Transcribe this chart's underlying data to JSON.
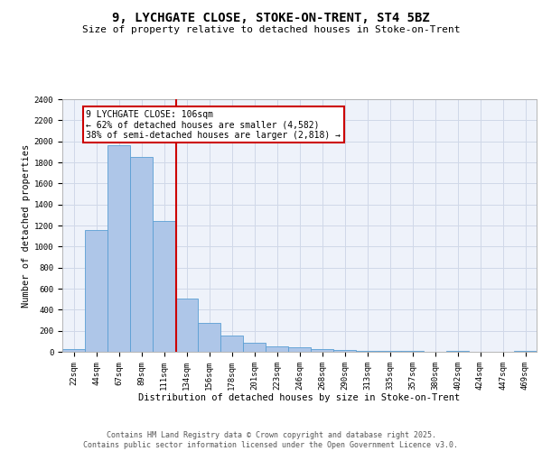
{
  "title1": "9, LYCHGATE CLOSE, STOKE-ON-TRENT, ST4 5BZ",
  "title2": "Size of property relative to detached houses in Stoke-on-Trent",
  "xlabel": "Distribution of detached houses by size in Stoke-on-Trent",
  "ylabel": "Number of detached properties",
  "categories": [
    "22sqm",
    "44sqm",
    "67sqm",
    "89sqm",
    "111sqm",
    "134sqm",
    "156sqm",
    "178sqm",
    "201sqm",
    "223sqm",
    "246sqm",
    "268sqm",
    "290sqm",
    "313sqm",
    "335sqm",
    "357sqm",
    "380sqm",
    "402sqm",
    "424sqm",
    "447sqm",
    "469sqm"
  ],
  "values": [
    25,
    1160,
    1960,
    1850,
    1240,
    510,
    275,
    155,
    90,
    50,
    40,
    25,
    15,
    10,
    5,
    5,
    2,
    5,
    2,
    2,
    10
  ],
  "bar_color": "#aec6e8",
  "bar_edge_color": "#5a9fd4",
  "bar_width": 1.0,
  "red_line_x": 4.55,
  "annotation_text": "9 LYCHGATE CLOSE: 106sqm\n← 62% of detached houses are smaller (4,582)\n38% of semi-detached houses are larger (2,818) →",
  "annotation_box_color": "#ffffff",
  "annotation_box_edge_color": "#cc0000",
  "red_line_color": "#cc0000",
  "grid_color": "#d0d8e8",
  "background_color": "#eef2fa",
  "footer_text": "Contains HM Land Registry data © Crown copyright and database right 2025.\nContains public sector information licensed under the Open Government Licence v3.0.",
  "ylim": [
    0,
    2400
  ],
  "yticks": [
    0,
    200,
    400,
    600,
    800,
    1000,
    1200,
    1400,
    1600,
    1800,
    2000,
    2200,
    2400
  ],
  "title_fontsize": 10,
  "subtitle_fontsize": 8,
  "axis_label_fontsize": 7.5,
  "tick_fontsize": 6.5,
  "footer_fontsize": 6,
  "annot_fontsize": 7
}
